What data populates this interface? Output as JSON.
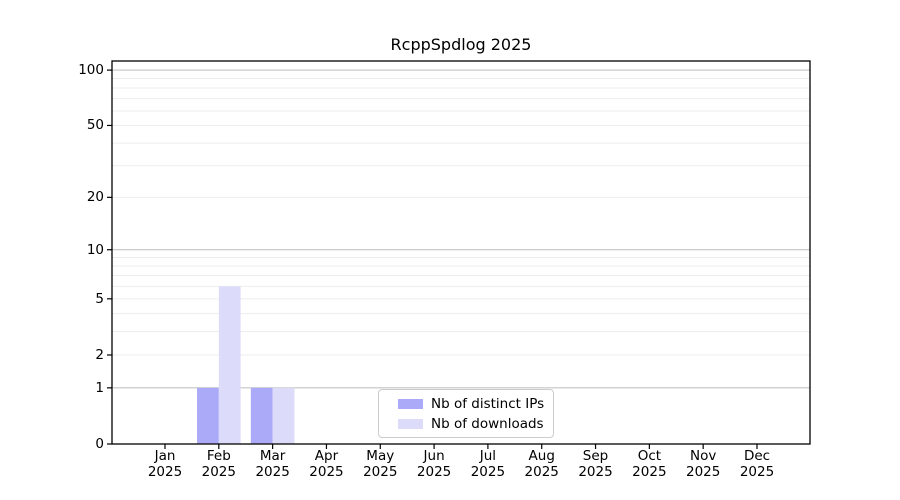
{
  "chart_data": {
    "type": "bar",
    "title": "RcppSpdlog 2025",
    "categories": [
      "Jan",
      "Feb",
      "Mar",
      "Apr",
      "May",
      "Jun",
      "Jul",
      "Aug",
      "Sep",
      "Oct",
      "Nov",
      "Dec"
    ],
    "x_year_label": "2025",
    "series": [
      {
        "name": "Nb of distinct IPs",
        "color": "#aaaaf8",
        "values": [
          0,
          1,
          1,
          0,
          0,
          0,
          0,
          0,
          0,
          0,
          0,
          0
        ]
      },
      {
        "name": "Nb of downloads",
        "color": "#dcdcfa",
        "values": [
          0,
          6,
          1,
          0,
          0,
          0,
          0,
          0,
          0,
          0,
          0,
          0
        ]
      }
    ],
    "xlabel": "",
    "ylabel": "",
    "yscale": "log1p",
    "ylim": [
      0,
      112
    ],
    "yticks": [
      0,
      1,
      2,
      5,
      10,
      20,
      50,
      100
    ],
    "grid": {
      "major_lines": [
        1,
        10,
        100
      ],
      "minor_lines": [
        2,
        3,
        4,
        5,
        6,
        7,
        8,
        9,
        20,
        30,
        40,
        50,
        60,
        70,
        80,
        90
      ],
      "major_color": "#c4c4c4",
      "minor_color": "#ededed"
    },
    "legend": {
      "position": "lower center"
    },
    "axis_color": "#000000"
  }
}
